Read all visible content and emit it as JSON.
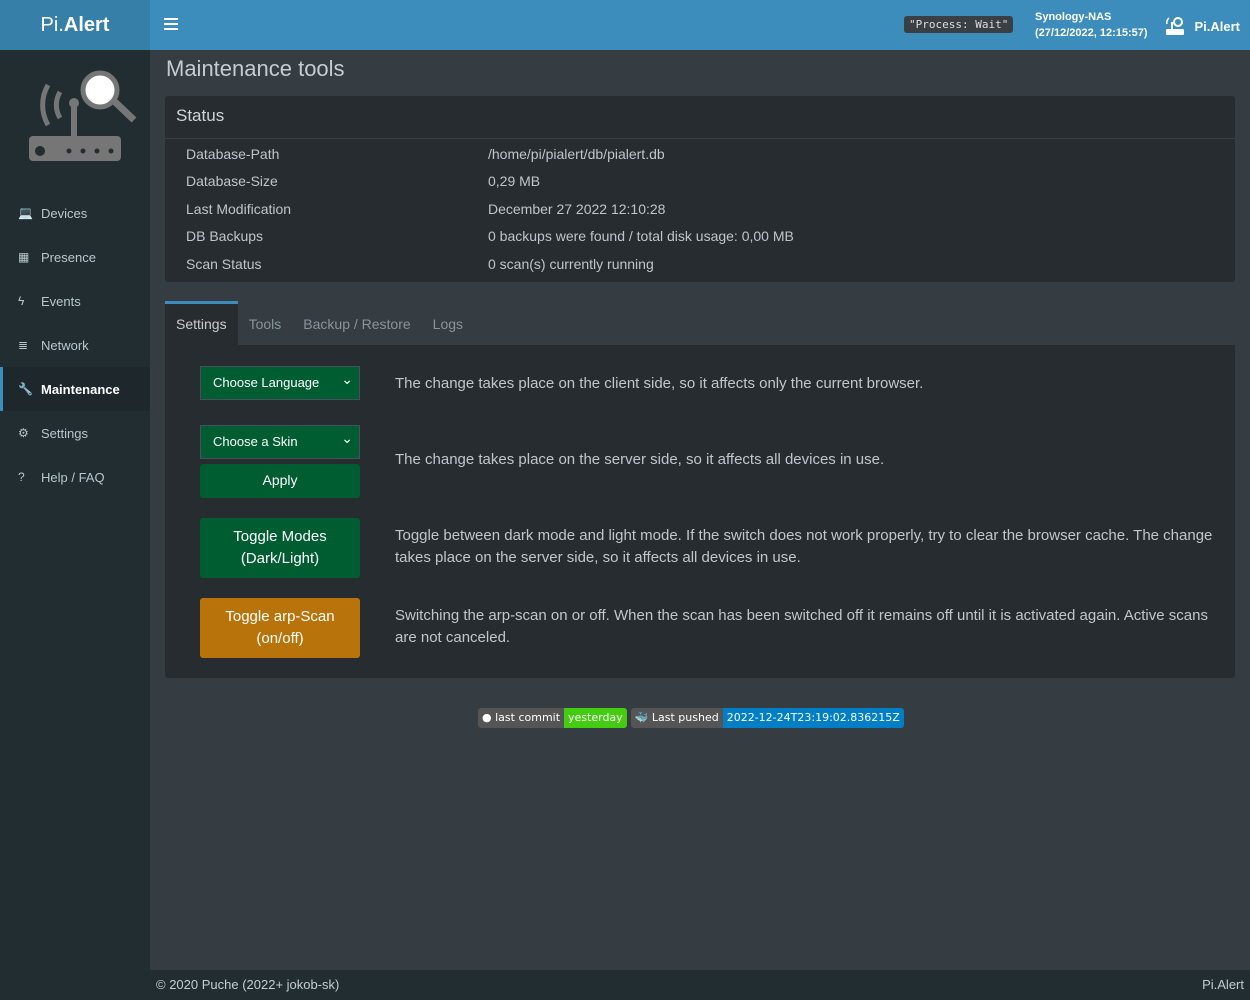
{
  "app": {
    "logo_prefix": "Pi.",
    "logo_suffix": "Alert",
    "process_status": "\"Process: Wait\"",
    "host": "Synology-NAS",
    "datetime": "(27/12/2022, 12:15:57)",
    "brand": "Pi.Alert"
  },
  "sidebar": {
    "items": [
      {
        "label": "Devices",
        "icon": "laptop-icon",
        "glyph": "💻"
      },
      {
        "label": "Presence",
        "icon": "calendar-icon",
        "glyph": "▦"
      },
      {
        "label": "Events",
        "icon": "bolt-icon",
        "glyph": "ϟ"
      },
      {
        "label": "Network",
        "icon": "server-icon",
        "glyph": "≣"
      },
      {
        "label": "Maintenance",
        "icon": "wrench-icon",
        "glyph": "🔧",
        "active": true
      },
      {
        "label": "Settings",
        "icon": "gear-icon",
        "glyph": "⚙"
      },
      {
        "label": "Help / FAQ",
        "icon": "question-icon",
        "glyph": "?"
      }
    ]
  },
  "page": {
    "title": "Maintenance tools"
  },
  "status": {
    "title": "Status",
    "rows": [
      {
        "label": "Database-Path",
        "value": "/home/pi/pialert/db/pialert.db"
      },
      {
        "label": "Database-Size",
        "value": "0,29 MB"
      },
      {
        "label": "Last Modification",
        "value": "December 27 2022 12:10:28"
      },
      {
        "label": "DB Backups",
        "value": "0 backups were found / total disk usage: 0,00 MB"
      },
      {
        "label": "Scan Status",
        "value": "0 scan(s) currently running"
      }
    ]
  },
  "tabs": [
    "Settings",
    "Tools",
    "Backup / Restore",
    "Logs"
  ],
  "settings": {
    "language_select": "Choose Language",
    "language_desc": "The change takes place on the client side, so it affects only the current browser.",
    "skin_select": "Choose a Skin",
    "apply": "Apply",
    "skin_desc": "The change takes place on the server side, so it affects all devices in use.",
    "toggle_modes_1": "Toggle Modes",
    "toggle_modes_2": "(Dark/Light)",
    "toggle_modes_desc": "Toggle between dark mode and light mode. If the switch does not work properly, try to clear the browser cache. The change takes place on the server side, so it affects all devices in use.",
    "toggle_arp_1": "Toggle arp-Scan",
    "toggle_arp_2": "(on/off)",
    "toggle_arp_desc": "Switching the arp-scan on or off. When the scan has been switched off it remains off until it is activated again. Active scans are not canceled."
  },
  "badges": {
    "commit_label": "last commit",
    "commit_value": "yesterday",
    "pushed_label": "Last pushed",
    "pushed_value": "2022-12-24T23:19:02.836215Z"
  },
  "footer": {
    "copyright": "© 2020 Puche (2022+ jokob-sk)",
    "brand": "Pi.Alert"
  },
  "colors": {
    "header": "#3c8dbc",
    "sidebar": "#222d32",
    "button_green": "#005c31",
    "button_orange": "#b8740a",
    "badge_green": "#44cc11",
    "badge_blue": "#007ec6"
  }
}
